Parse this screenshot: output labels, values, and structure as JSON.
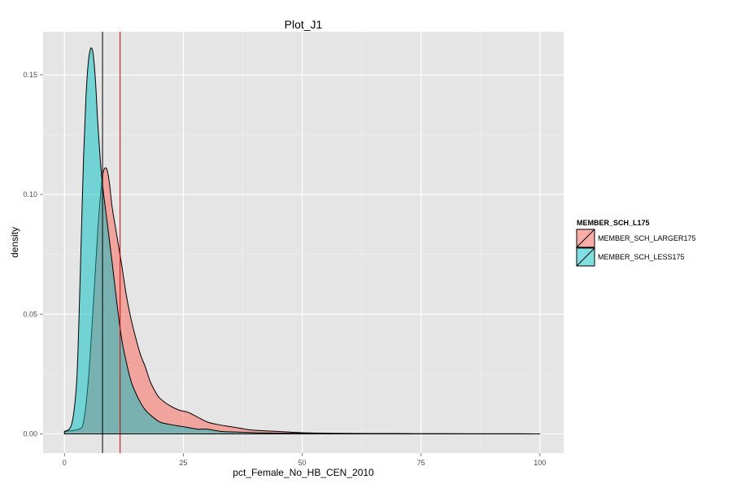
{
  "chart_data": {
    "type": "area",
    "title": "Plot_J1",
    "xlabel": "pct_Female_No_HB_CEN_2010",
    "ylabel": "density",
    "xlim": [
      -4.5,
      105
    ],
    "ylim": [
      -0.008,
      0.168
    ],
    "x_ticks": [
      0,
      25,
      50,
      75,
      100
    ],
    "x_tick_labels": [
      "0",
      "25",
      "50",
      "75",
      "100"
    ],
    "y_ticks": [
      0.0,
      0.05,
      0.1,
      0.15
    ],
    "y_tick_labels": [
      "0.00",
      "0.05",
      "0.10",
      "0.15"
    ],
    "grid": true,
    "legend": {
      "title": "MEMBER_SCH_L175",
      "placement": "right"
    },
    "series": [
      {
        "name": "MEMBER_SCH_LARGER175",
        "color": "#F8766D",
        "fill_alpha": 0.6,
        "x": [
          0,
          3,
          4,
          5,
          6,
          7,
          7.5,
          8,
          8.5,
          9,
          9.5,
          10,
          11,
          12,
          13,
          14,
          15,
          16,
          17,
          18,
          19,
          20,
          22,
          24,
          26,
          28,
          30,
          32,
          35,
          38,
          40,
          45,
          50,
          55,
          60,
          70,
          80,
          90,
          100
        ],
        "y": [
          0.001,
          0.002,
          0.005,
          0.022,
          0.052,
          0.085,
          0.098,
          0.108,
          0.111,
          0.11,
          0.104,
          0.095,
          0.083,
          0.071,
          0.058,
          0.048,
          0.04,
          0.033,
          0.028,
          0.022,
          0.018,
          0.015,
          0.012,
          0.01,
          0.009,
          0.007,
          0.005,
          0.004,
          0.003,
          0.002,
          0.0015,
          0.001,
          0.0005,
          0.0003,
          0.0002,
          0.0001,
          5e-05,
          2e-05,
          0.0
        ]
      },
      {
        "name": "MEMBER_SCH_LESS175",
        "color": "#00BFC4",
        "fill_alpha": 0.5,
        "x": [
          0,
          1.5,
          2.5,
          3,
          3.5,
          4,
          4.5,
          5,
          5.5,
          6,
          6.5,
          7,
          7.5,
          8,
          9,
          10,
          11,
          12,
          13,
          14,
          15,
          16,
          17,
          18,
          20,
          22,
          25,
          28,
          30,
          33,
          36,
          40,
          45,
          50,
          60,
          80,
          100
        ],
        "y": [
          0.001,
          0.004,
          0.02,
          0.045,
          0.08,
          0.115,
          0.14,
          0.155,
          0.161,
          0.159,
          0.148,
          0.13,
          0.115,
          0.104,
          0.088,
          0.072,
          0.055,
          0.04,
          0.03,
          0.022,
          0.017,
          0.013,
          0.01,
          0.008,
          0.005,
          0.004,
          0.003,
          0.002,
          0.002,
          0.001,
          0.0008,
          0.0005,
          0.0003,
          0.0002,
          0.0001,
          3e-05,
          0.0
        ]
      }
    ],
    "vlines": [
      {
        "x": 8,
        "color": "#000000"
      },
      {
        "x": 11.7,
        "color": "#CC0000"
      }
    ]
  }
}
